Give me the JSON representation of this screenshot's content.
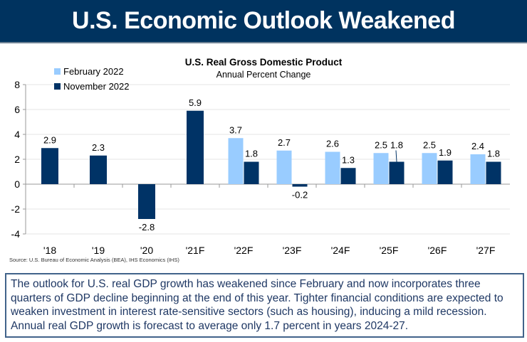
{
  "header": {
    "title": "U.S. Economic Outlook Weakened"
  },
  "chart_data": {
    "type": "bar",
    "title": "U.S. Real Gross Domestic Product",
    "subtitle": "Annual Percent Change",
    "categories": [
      "'18",
      "'19",
      "'20",
      "'21F",
      "'22F",
      "'23F",
      "'24F",
      "'25F",
      "'26F",
      "'27F"
    ],
    "series": [
      {
        "name": "February 2022",
        "color": "#99ccff",
        "values": [
          null,
          null,
          null,
          null,
          3.7,
          2.7,
          2.6,
          2.5,
          2.5,
          2.4
        ]
      },
      {
        "name": "November 2022",
        "color": "#003366",
        "values": [
          2.9,
          2.3,
          -2.8,
          5.9,
          1.8,
          -0.2,
          1.3,
          1.8,
          1.9,
          1.8
        ]
      }
    ],
    "ylim": [
      -4,
      8
    ],
    "yticks": [
      "-4",
      "-2",
      "0",
      "2",
      "4",
      "6",
      "8"
    ],
    "grid": true,
    "legend": "top-left",
    "source": "Source:  U.S. Bureau of Economic Analysis (BEA), IHS Economics (IHS)"
  },
  "note": "The outlook for U.S. real GDP growth has weakened since February and now incorporates three quarters of GDP decline beginning at the end of this year. Tighter financial conditions are expected to weaken investment in interest rate-sensitive sectors (such as housing), inducing a mild recession. Annual real GDP growth is forecast to average only 1.7 percent in years 2024-27."
}
